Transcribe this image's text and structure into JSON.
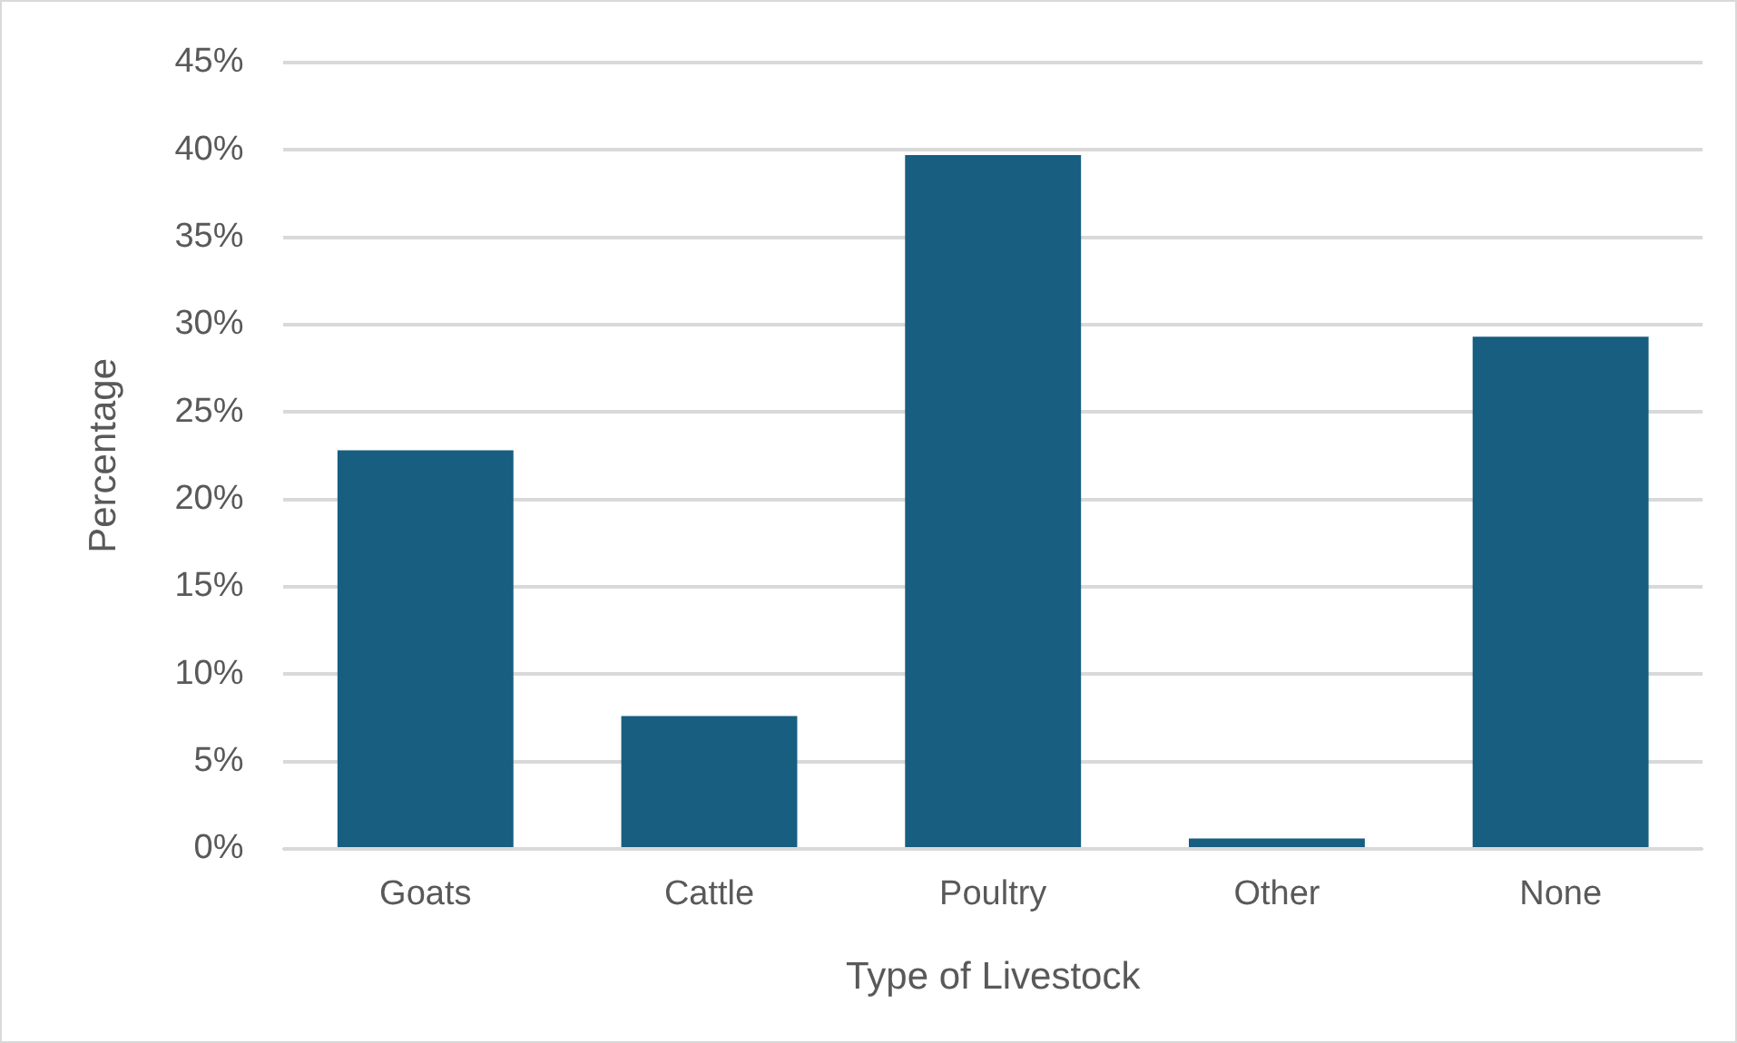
{
  "chart_data": {
    "type": "bar",
    "xlabel": "Type of Livestock",
    "ylabel": "Percentage",
    "categories": [
      "Goats",
      "Cattle",
      "Poultry",
      "Other",
      "None"
    ],
    "values": [
      22.8,
      7.6,
      39.7,
      0.6,
      29.3
    ],
    "color": "#175e80",
    "ylim": [
      0,
      45
    ],
    "yticks": [
      {
        "value": 0,
        "label": "0%"
      },
      {
        "value": 5,
        "label": "5%"
      },
      {
        "value": 10,
        "label": "10%"
      },
      {
        "value": 15,
        "label": "15%"
      },
      {
        "value": 20,
        "label": "20%"
      },
      {
        "value": 25,
        "label": "25%"
      },
      {
        "value": 30,
        "label": "30%"
      },
      {
        "value": 35,
        "label": "35%"
      },
      {
        "value": 40,
        "label": "40%"
      },
      {
        "value": 45,
        "label": "45%"
      }
    ],
    "grid": "y",
    "legend": false
  }
}
